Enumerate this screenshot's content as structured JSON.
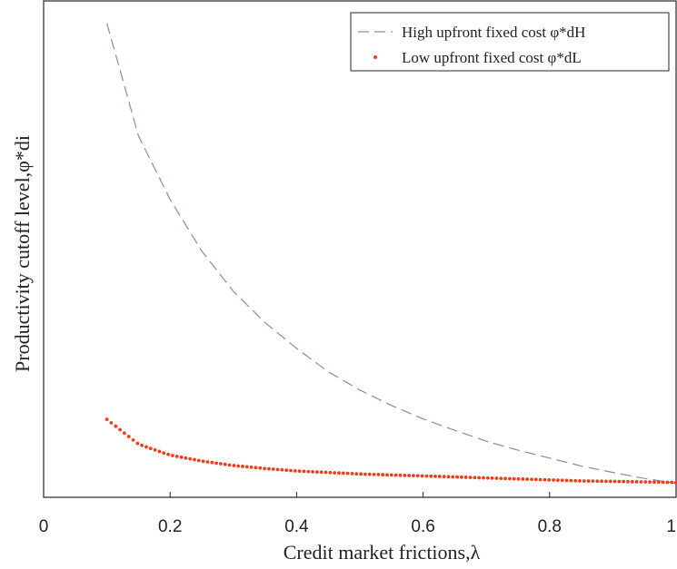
{
  "chart_data": {
    "type": "line",
    "xlabel": "Credit market frictions,λ",
    "ylabel": "Productivity cutoff level,φ*di",
    "xlim": [
      0,
      1
    ],
    "ylim": [
      0,
      1
    ],
    "x_ticks": [
      "0",
      "0.2",
      "0.4",
      "0.6",
      "0.8",
      "1"
    ],
    "grid": false,
    "legend_position": "top-right",
    "series": [
      {
        "name": "High upfront fixed cost φ*dH",
        "style": "dashed",
        "color": "#7f8fa6",
        "x": [
          0.1,
          0.15,
          0.2,
          0.25,
          0.3,
          0.35,
          0.4,
          0.45,
          0.5,
          0.55,
          0.6,
          0.65,
          0.7,
          0.75,
          0.8,
          0.85,
          0.9,
          0.95,
          1.0
        ],
        "y": [
          0.955,
          0.728,
          0.6,
          0.496,
          0.415,
          0.352,
          0.3,
          0.253,
          0.216,
          0.185,
          0.158,
          0.135,
          0.113,
          0.095,
          0.079,
          0.063,
          0.05,
          0.038,
          0.028
        ]
      },
      {
        "name": "Low upfront fixed cost φ*dL",
        "style": "dotted",
        "color": "#e8401c",
        "x": [
          0.1,
          0.15,
          0.2,
          0.25,
          0.3,
          0.35,
          0.4,
          0.45,
          0.5,
          0.55,
          0.6,
          0.65,
          0.7,
          0.75,
          0.8,
          0.85,
          0.9,
          0.95,
          1.0
        ],
        "y": [
          0.157,
          0.107,
          0.085,
          0.073,
          0.064,
          0.058,
          0.053,
          0.05,
          0.047,
          0.045,
          0.043,
          0.041,
          0.039,
          0.037,
          0.035,
          0.033,
          0.032,
          0.031,
          0.03
        ]
      }
    ]
  }
}
